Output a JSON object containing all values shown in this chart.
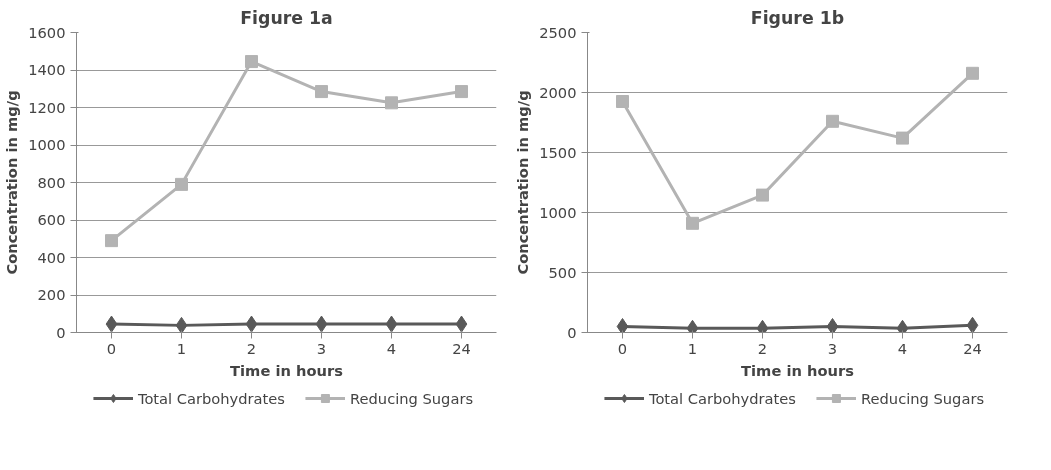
{
  "chart_data": [
    {
      "type": "line",
      "title": "Figure 1a",
      "xlabel": "Time in hours",
      "ylabel": "Concentration in mg/g",
      "categories": [
        "0",
        "1",
        "2",
        "3",
        "4",
        "24"
      ],
      "ylim": [
        0,
        1600
      ],
      "yticks": [
        0,
        200,
        400,
        600,
        800,
        1000,
        1200,
        1400,
        1600
      ],
      "grid": "y",
      "legend": "bottom",
      "series": [
        {
          "name": "Total Carbohydrates",
          "color": "#595959",
          "marker": "diamond",
          "values": [
            45,
            38,
            45,
            45,
            45,
            45
          ]
        },
        {
          "name": "Reducing Sugars",
          "color": "#b3b3b3",
          "marker": "square",
          "values": [
            490,
            790,
            1445,
            1285,
            1225,
            1285
          ]
        }
      ]
    },
    {
      "type": "line",
      "title": "Figure 1b",
      "xlabel": "Time in hours",
      "ylabel": "Concentration in mg/g",
      "categories": [
        "0",
        "1",
        "2",
        "3",
        "4",
        "24"
      ],
      "ylim": [
        0,
        2500
      ],
      "yticks": [
        0,
        500,
        1000,
        1500,
        2000,
        2500
      ],
      "grid": "y",
      "legend": "bottom",
      "series": [
        {
          "name": "Total Carbohydrates",
          "color": "#595959",
          "marker": "diamond",
          "values": [
            50,
            35,
            35,
            50,
            35,
            60
          ]
        },
        {
          "name": "Reducing Sugars",
          "color": "#b3b3b3",
          "marker": "square",
          "values": [
            1925,
            910,
            1145,
            1760,
            1620,
            2160
          ]
        }
      ]
    }
  ]
}
